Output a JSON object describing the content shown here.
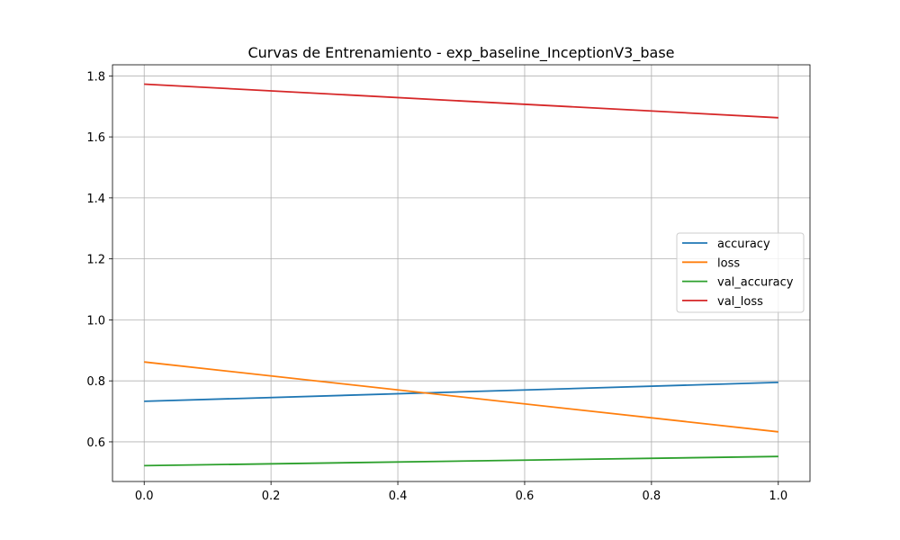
{
  "chart_data": {
    "type": "line",
    "title": "Curvas de Entrenamiento - exp_baseline_InceptionV3_base",
    "xlabel": "",
    "ylabel": "",
    "x": [
      0.0,
      1.0
    ],
    "xlim": [
      -0.05,
      1.05
    ],
    "ylim": [
      0.47,
      1.8364
    ],
    "x_ticks": [
      "0.0",
      "0.2",
      "0.4",
      "0.6",
      "0.8",
      "1.0"
    ],
    "y_ticks": [
      "0.6",
      "0.8",
      "1.0",
      "1.2",
      "1.4",
      "1.6",
      "1.8"
    ],
    "grid": true,
    "legend_position": "center-right",
    "series": [
      {
        "name": "accuracy",
        "color": "#1f77b4",
        "values": [
          0.733,
          0.795
        ]
      },
      {
        "name": "loss",
        "color": "#ff7f0e",
        "values": [
          0.862,
          0.633
        ]
      },
      {
        "name": "val_accuracy",
        "color": "#2ca02c",
        "values": [
          0.522,
          0.552
        ]
      },
      {
        "name": "val_loss",
        "color": "#d62728",
        "values": [
          1.773,
          1.663
        ]
      }
    ]
  }
}
